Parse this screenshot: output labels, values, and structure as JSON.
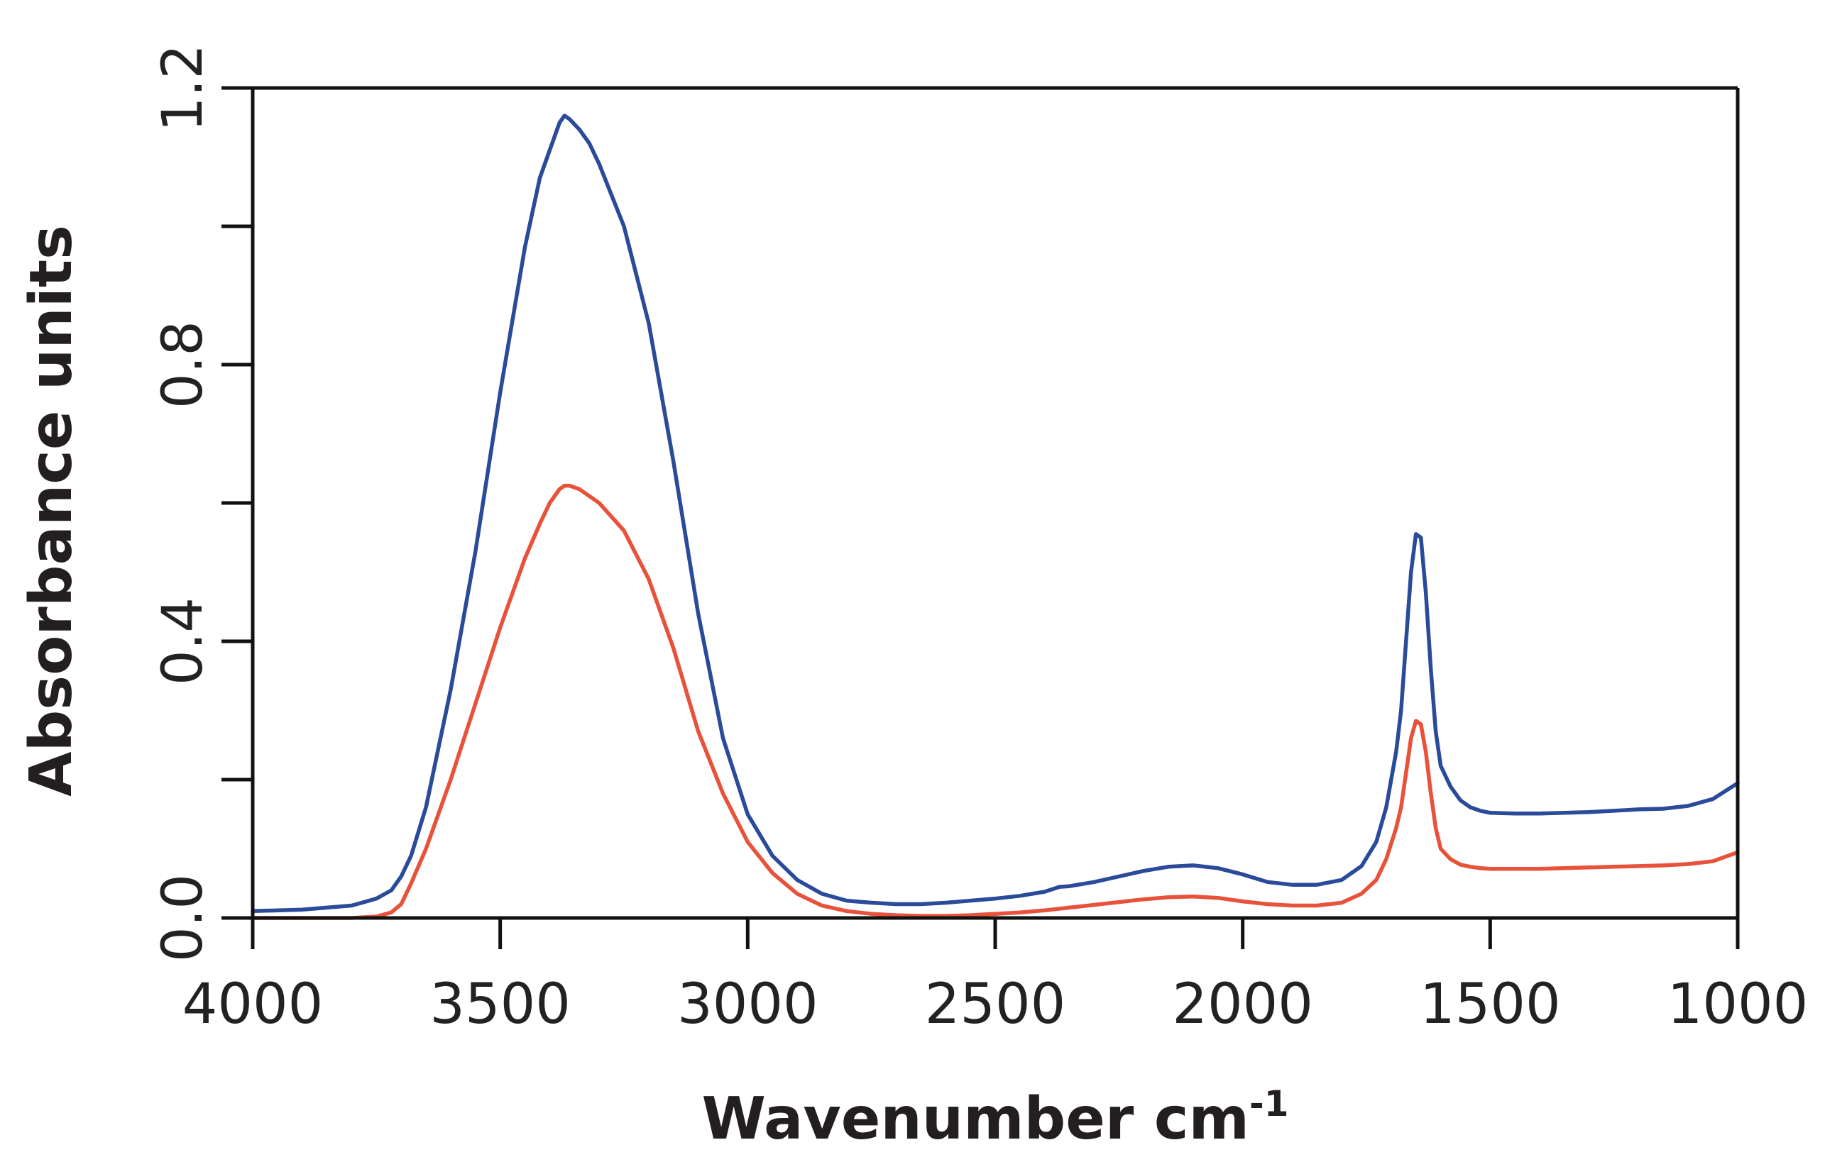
{
  "chart_data": {
    "type": "line",
    "title": "",
    "xlabel": "Wavenumber cm",
    "xlabel_superscript": "-1",
    "ylabel": "Absorbance units",
    "xlim": [
      4000,
      1000
    ],
    "ylim": [
      0.0,
      1.2
    ],
    "x_reversed": true,
    "grid": false,
    "x_ticks": [
      4000,
      3500,
      3000,
      2500,
      2000,
      1500,
      1000
    ],
    "x_tick_labels": [
      "4000",
      "3500",
      "3000",
      "2500",
      "2000",
      "1500",
      "1000"
    ],
    "y_ticks": [
      0.0,
      0.2,
      0.4,
      0.6,
      0.8,
      1.0,
      1.2
    ],
    "y_tick_labels": [
      "0.0",
      "",
      "0.4",
      "",
      "0.8",
      "",
      "1.2"
    ],
    "series": [
      {
        "color": "#2a4a9a",
        "x": [
          4000,
          3900,
          3800,
          3750,
          3720,
          3700,
          3680,
          3650,
          3600,
          3550,
          3500,
          3450,
          3420,
          3400,
          3380,
          3370,
          3360,
          3340,
          3320,
          3300,
          3250,
          3200,
          3150,
          3100,
          3050,
          3000,
          2950,
          2900,
          2850,
          2800,
          2750,
          2700,
          2650,
          2600,
          2550,
          2500,
          2450,
          2400,
          2370,
          2350,
          2300,
          2250,
          2200,
          2150,
          2100,
          2050,
          2000,
          1950,
          1900,
          1850,
          1800,
          1760,
          1730,
          1710,
          1690,
          1680,
          1670,
          1660,
          1650,
          1640,
          1630,
          1620,
          1610,
          1600,
          1580,
          1560,
          1540,
          1520,
          1500,
          1450,
          1400,
          1350,
          1300,
          1250,
          1200,
          1150,
          1100,
          1050,
          1000
        ],
        "y": [
          0.01,
          0.012,
          0.018,
          0.028,
          0.04,
          0.06,
          0.09,
          0.16,
          0.33,
          0.53,
          0.76,
          0.97,
          1.07,
          1.11,
          1.15,
          1.16,
          1.155,
          1.14,
          1.12,
          1.09,
          1.0,
          0.86,
          0.66,
          0.44,
          0.26,
          0.15,
          0.09,
          0.055,
          0.035,
          0.025,
          0.022,
          0.02,
          0.02,
          0.022,
          0.025,
          0.028,
          0.032,
          0.038,
          0.045,
          0.046,
          0.052,
          0.06,
          0.068,
          0.074,
          0.076,
          0.072,
          0.063,
          0.052,
          0.048,
          0.048,
          0.055,
          0.075,
          0.11,
          0.16,
          0.24,
          0.3,
          0.4,
          0.5,
          0.555,
          0.55,
          0.47,
          0.36,
          0.27,
          0.22,
          0.19,
          0.17,
          0.16,
          0.155,
          0.152,
          0.151,
          0.151,
          0.152,
          0.153,
          0.155,
          0.157,
          0.158,
          0.162,
          0.172,
          0.195
        ]
      },
      {
        "color": "#e8523a",
        "x": [
          4000,
          3900,
          3800,
          3750,
          3720,
          3700,
          3680,
          3650,
          3600,
          3550,
          3500,
          3450,
          3420,
          3400,
          3380,
          3370,
          3360,
          3340,
          3320,
          3300,
          3250,
          3200,
          3150,
          3100,
          3050,
          3000,
          2950,
          2900,
          2850,
          2800,
          2750,
          2700,
          2650,
          2600,
          2550,
          2500,
          2450,
          2400,
          2350,
          2300,
          2250,
          2200,
          2150,
          2100,
          2050,
          2000,
          1950,
          1900,
          1850,
          1800,
          1760,
          1730,
          1710,
          1690,
          1680,
          1670,
          1660,
          1650,
          1640,
          1630,
          1620,
          1610,
          1600,
          1580,
          1560,
          1540,
          1520,
          1500,
          1450,
          1400,
          1350,
          1300,
          1250,
          1200,
          1150,
          1100,
          1050,
          1000
        ],
        "y": [
          0.0,
          0.0,
          0.0,
          0.002,
          0.008,
          0.02,
          0.05,
          0.1,
          0.2,
          0.31,
          0.42,
          0.52,
          0.57,
          0.6,
          0.62,
          0.625,
          0.625,
          0.62,
          0.61,
          0.6,
          0.56,
          0.49,
          0.39,
          0.27,
          0.18,
          0.11,
          0.065,
          0.035,
          0.018,
          0.01,
          0.006,
          0.004,
          0.003,
          0.003,
          0.004,
          0.006,
          0.008,
          0.011,
          0.015,
          0.019,
          0.023,
          0.027,
          0.03,
          0.031,
          0.029,
          0.024,
          0.02,
          0.018,
          0.018,
          0.022,
          0.035,
          0.055,
          0.085,
          0.13,
          0.16,
          0.21,
          0.26,
          0.285,
          0.28,
          0.24,
          0.18,
          0.13,
          0.1,
          0.085,
          0.077,
          0.074,
          0.072,
          0.071,
          0.071,
          0.071,
          0.072,
          0.073,
          0.074,
          0.075,
          0.076,
          0.078,
          0.082,
          0.095
        ]
      }
    ]
  }
}
